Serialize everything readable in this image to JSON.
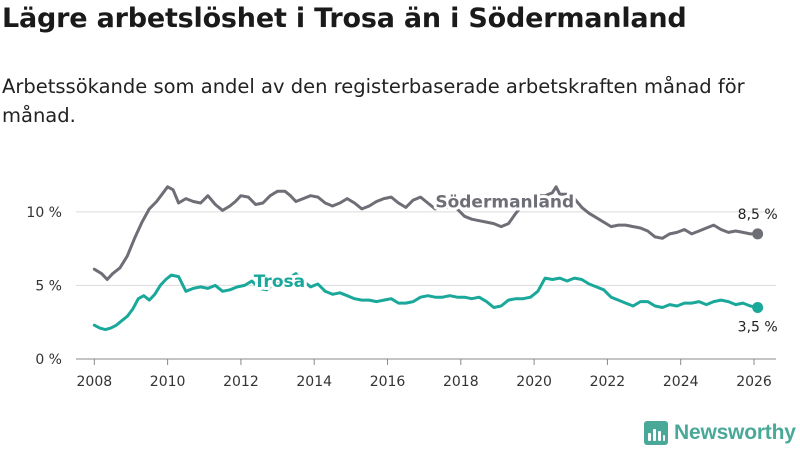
{
  "header": {
    "title": "Lägre arbetslöshet i Trosa än i Södermanland",
    "subtitle": "Arbetssökande som andel av den registerbaserade arbetskraften månad för månad."
  },
  "footer": {
    "brand": "Newsworthy"
  },
  "chart_data": {
    "type": "line",
    "title": "Lägre arbetslöshet i Trosa än i Södermanland",
    "subtitle": "Arbetssökande som andel av den registerbaserade arbetskraften månad för månad.",
    "xlabel": "",
    "ylabel": "",
    "xlim": [
      2007.5,
      2026.6
    ],
    "ylim": [
      0,
      12.3
    ],
    "x_ticks": [
      2008,
      2010,
      2012,
      2014,
      2016,
      2018,
      2020,
      2022,
      2024,
      2026
    ],
    "x_tick_labels": [
      "2008",
      "2010",
      "2012",
      "2014",
      "2016",
      "2018",
      "2020",
      "2022",
      "2024",
      "2026"
    ],
    "y_ticks": [
      0,
      5,
      10
    ],
    "y_tick_labels": [
      "0 %",
      "5 %",
      "10 %"
    ],
    "grid": "horizontal",
    "series": [
      {
        "name": "Södermanland",
        "color": "#6e6e76",
        "label_x": 2019.2,
        "label_y": 10.3,
        "end_label": "8,5 %",
        "x": [
          2008.0,
          2008.2,
          2008.35,
          2008.5,
          2008.7,
          2008.9,
          2009.1,
          2009.3,
          2009.5,
          2009.7,
          2009.85,
          2010.0,
          2010.15,
          2010.3,
          2010.5,
          2010.7,
          2010.9,
          2011.1,
          2011.3,
          2011.5,
          2011.7,
          2011.85,
          2012.0,
          2012.2,
          2012.4,
          2012.6,
          2012.8,
          2013.0,
          2013.2,
          2013.35,
          2013.5,
          2013.7,
          2013.9,
          2014.1,
          2014.3,
          2014.5,
          2014.7,
          2014.9,
          2015.1,
          2015.3,
          2015.5,
          2015.7,
          2015.9,
          2016.1,
          2016.3,
          2016.5,
          2016.7,
          2016.9,
          2017.1,
          2017.3,
          2017.5,
          2017.7,
          2017.9,
          2018.1,
          2018.3,
          2018.5,
          2018.7,
          2018.9,
          2019.1,
          2019.3,
          2019.5,
          2019.7,
          2019.9,
          2020.1,
          2020.3,
          2020.5,
          2020.6,
          2020.7,
          2020.9,
          2021.1,
          2021.3,
          2021.5,
          2021.7,
          2021.9,
          2022.1,
          2022.3,
          2022.5,
          2022.7,
          2022.9,
          2023.1,
          2023.3,
          2023.5,
          2023.7,
          2023.9,
          2024.1,
          2024.3,
          2024.5,
          2024.7,
          2024.9,
          2025.1,
          2025.3,
          2025.5,
          2025.7,
          2025.9,
          2026.1
        ],
        "values": [
          6.1,
          5.8,
          5.4,
          5.8,
          6.2,
          7.0,
          8.2,
          9.3,
          10.2,
          10.7,
          11.2,
          11.7,
          11.5,
          10.6,
          10.9,
          10.7,
          10.6,
          11.1,
          10.5,
          10.1,
          10.4,
          10.7,
          11.1,
          11.0,
          10.5,
          10.6,
          11.1,
          11.4,
          11.4,
          11.1,
          10.7,
          10.9,
          11.1,
          11.0,
          10.6,
          10.4,
          10.6,
          10.9,
          10.6,
          10.2,
          10.4,
          10.7,
          10.9,
          11.0,
          10.6,
          10.3,
          10.8,
          11.0,
          10.6,
          10.2,
          10.3,
          10.3,
          10.2,
          9.7,
          9.5,
          9.4,
          9.3,
          9.2,
          9.0,
          9.2,
          9.9,
          10.5,
          10.8,
          11.1,
          11.1,
          11.3,
          11.7,
          11.2,
          11.2,
          10.9,
          10.3,
          9.9,
          9.6,
          9.3,
          9.0,
          9.1,
          9.1,
          9.0,
          8.9,
          8.7,
          8.3,
          8.2,
          8.5,
          8.6,
          8.8,
          8.5,
          8.7,
          8.9,
          9.1,
          8.8,
          8.6,
          8.7,
          8.6,
          8.5,
          8.5
        ]
      },
      {
        "name": "Trosa",
        "color": "#1aa89a",
        "label_x": 2013.05,
        "label_y": 4.9,
        "end_label": "3,5 %",
        "x": [
          2008.0,
          2008.15,
          2008.3,
          2008.45,
          2008.6,
          2008.75,
          2008.9,
          2009.05,
          2009.2,
          2009.35,
          2009.5,
          2009.65,
          2009.8,
          2009.95,
          2010.1,
          2010.3,
          2010.5,
          2010.7,
          2010.9,
          2011.1,
          2011.3,
          2011.5,
          2011.7,
          2011.9,
          2012.1,
          2012.3,
          2012.5,
          2012.7,
          2012.9,
          2013.1,
          2013.3,
          2013.5,
          2013.7,
          2013.9,
          2014.1,
          2014.3,
          2014.5,
          2014.7,
          2014.9,
          2015.1,
          2015.3,
          2015.5,
          2015.7,
          2015.9,
          2016.1,
          2016.3,
          2016.5,
          2016.7,
          2016.9,
          2017.1,
          2017.3,
          2017.5,
          2017.7,
          2017.9,
          2018.1,
          2018.3,
          2018.5,
          2018.7,
          2018.9,
          2019.1,
          2019.3,
          2019.5,
          2019.7,
          2019.9,
          2020.1,
          2020.3,
          2020.5,
          2020.7,
          2020.9,
          2021.1,
          2021.3,
          2021.5,
          2021.7,
          2021.9,
          2022.1,
          2022.3,
          2022.5,
          2022.7,
          2022.9,
          2023.1,
          2023.3,
          2023.5,
          2023.7,
          2023.9,
          2024.1,
          2024.3,
          2024.5,
          2024.7,
          2024.9,
          2025.1,
          2025.3,
          2025.5,
          2025.7,
          2025.9,
          2026.1
        ],
        "values": [
          2.3,
          2.1,
          2.0,
          2.1,
          2.3,
          2.6,
          2.9,
          3.4,
          4.1,
          4.3,
          4.0,
          4.4,
          5.0,
          5.4,
          5.7,
          5.6,
          4.6,
          4.8,
          4.9,
          4.8,
          5.0,
          4.6,
          4.7,
          4.9,
          5.0,
          5.3,
          4.8,
          4.7,
          5.1,
          5.3,
          5.5,
          5.8,
          5.3,
          4.9,
          5.1,
          4.6,
          4.4,
          4.5,
          4.3,
          4.1,
          4.0,
          4.0,
          3.9,
          4.0,
          4.1,
          3.8,
          3.8,
          3.9,
          4.2,
          4.3,
          4.2,
          4.2,
          4.3,
          4.2,
          4.2,
          4.1,
          4.2,
          3.9,
          3.5,
          3.6,
          4.0,
          4.1,
          4.1,
          4.2,
          4.6,
          5.5,
          5.4,
          5.5,
          5.3,
          5.5,
          5.4,
          5.1,
          4.9,
          4.7,
          4.2,
          4.0,
          3.8,
          3.6,
          3.9,
          3.9,
          3.6,
          3.5,
          3.7,
          3.6,
          3.8,
          3.8,
          3.9,
          3.7,
          3.9,
          4.0,
          3.9,
          3.7,
          3.8,
          3.6,
          3.5
        ]
      }
    ]
  }
}
